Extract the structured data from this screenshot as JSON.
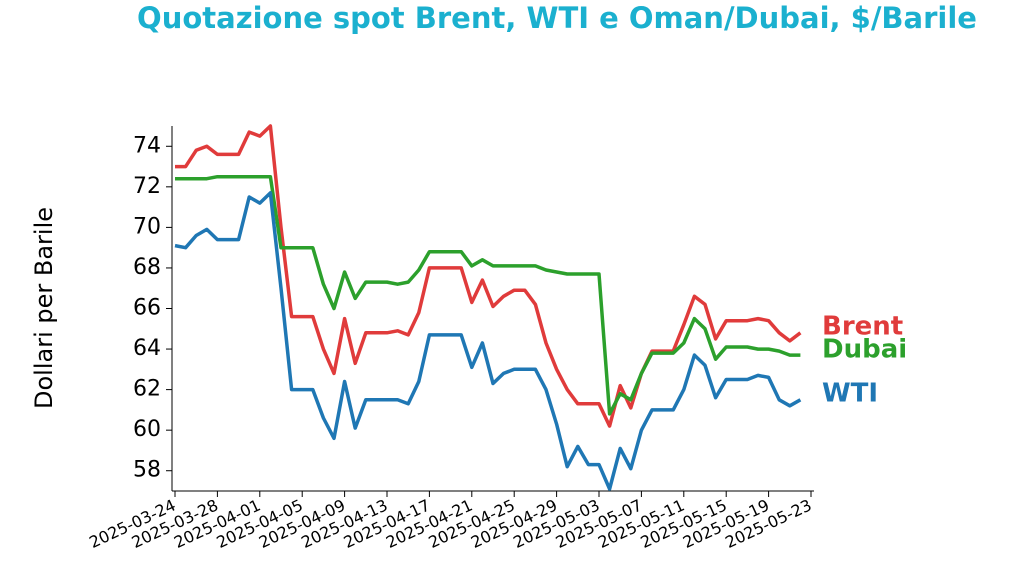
{
  "chart_data": {
    "type": "line",
    "title": "Quotazione spot Brent, WTI e Oman/Dubai, $/Barile",
    "y_label": "Dollari per Barile",
    "x": [
      "2025-03-24",
      "2025-03-25",
      "2025-03-26",
      "2025-03-27",
      "2025-03-28",
      "2025-03-29",
      "2025-03-30",
      "2025-03-31",
      "2025-04-01",
      "2025-04-02",
      "2025-04-03",
      "2025-04-04",
      "2025-04-05",
      "2025-04-06",
      "2025-04-07",
      "2025-04-08",
      "2025-04-09",
      "2025-04-10",
      "2025-04-11",
      "2025-04-12",
      "2025-04-13",
      "2025-04-14",
      "2025-04-15",
      "2025-04-16",
      "2025-04-17",
      "2025-04-18",
      "2025-04-19",
      "2025-04-20",
      "2025-04-21",
      "2025-04-22",
      "2025-04-23",
      "2025-04-24",
      "2025-04-25",
      "2025-04-26",
      "2025-04-27",
      "2025-04-28",
      "2025-04-29",
      "2025-04-30",
      "2025-05-01",
      "2025-05-02",
      "2025-05-03",
      "2025-05-04",
      "2025-05-05",
      "2025-05-06",
      "2025-05-07",
      "2025-05-08",
      "2025-05-09",
      "2025-05-10",
      "2025-05-11",
      "2025-05-12",
      "2025-05-13",
      "2025-05-14",
      "2025-05-15",
      "2025-05-16",
      "2025-05-17",
      "2025-05-18",
      "2025-05-19",
      "2025-05-20",
      "2025-05-21",
      "2025-05-22"
    ],
    "series": [
      {
        "name": "Brent",
        "color": "#e03b3b",
        "values": [
          73.0,
          73.0,
          73.8,
          74.0,
          73.6,
          73.6,
          73.6,
          74.7,
          74.5,
          75.0,
          70.0,
          65.6,
          65.6,
          65.6,
          64.0,
          62.8,
          65.5,
          63.3,
          64.8,
          64.8,
          64.8,
          64.9,
          64.7,
          65.8,
          68.0,
          68.0,
          68.0,
          68.0,
          66.3,
          67.4,
          66.1,
          66.6,
          66.9,
          66.9,
          66.2,
          64.3,
          63.0,
          62.0,
          61.3,
          61.3,
          61.3,
          60.2,
          62.2,
          61.1,
          62.8,
          63.9,
          63.9,
          63.9,
          65.2,
          66.6,
          66.2,
          64.5,
          65.4,
          65.4,
          65.4,
          65.5,
          65.4,
          64.8,
          64.4,
          64.8
        ]
      },
      {
        "name": "Dubai",
        "color": "#2ca02c",
        "values": [
          72.4,
          72.4,
          72.4,
          72.4,
          72.5,
          72.5,
          72.5,
          72.5,
          72.5,
          72.5,
          69.0,
          69.0,
          69.0,
          69.0,
          67.2,
          66.0,
          67.8,
          66.5,
          67.3,
          67.3,
          67.3,
          67.2,
          67.3,
          67.9,
          68.8,
          68.8,
          68.8,
          68.8,
          68.1,
          68.4,
          68.1,
          68.1,
          68.1,
          68.1,
          68.1,
          67.9,
          67.8,
          67.7,
          67.7,
          67.7,
          67.7,
          60.8,
          61.8,
          61.5,
          62.8,
          63.8,
          63.8,
          63.8,
          64.3,
          65.5,
          65.0,
          63.5,
          64.1,
          64.1,
          64.1,
          64.0,
          64.0,
          63.9,
          63.7,
          63.7
        ]
      },
      {
        "name": "WTI",
        "color": "#1f77b4",
        "values": [
          69.1,
          69.0,
          69.6,
          69.9,
          69.4,
          69.4,
          69.4,
          71.5,
          71.2,
          71.7,
          67.0,
          62.0,
          62.0,
          62.0,
          60.6,
          59.6,
          62.4,
          60.1,
          61.5,
          61.5,
          61.5,
          61.5,
          61.3,
          62.4,
          64.7,
          64.7,
          64.7,
          64.7,
          63.1,
          64.3,
          62.3,
          62.8,
          63.0,
          63.0,
          63.0,
          62.0,
          60.3,
          58.2,
          59.2,
          58.3,
          58.3,
          57.1,
          59.1,
          58.1,
          60.0,
          61.0,
          61.0,
          61.0,
          62.0,
          63.7,
          63.2,
          61.6,
          62.5,
          62.5,
          62.5,
          62.7,
          62.6,
          61.5,
          61.2,
          61.5
        ]
      }
    ],
    "xlim": [
      "2025-03-24",
      "2025-05-23"
    ],
    "xticks": [
      "2025-03-24",
      "2025-03-28",
      "2025-04-01",
      "2025-04-05",
      "2025-04-09",
      "2025-04-13",
      "2025-04-17",
      "2025-04-21",
      "2025-04-25",
      "2025-04-29",
      "2025-05-03",
      "2025-05-07",
      "2025-05-11",
      "2025-05-15",
      "2025-05-19",
      "2025-05-23"
    ],
    "ylim": [
      57,
      75
    ],
    "yticks": [
      58,
      60,
      62,
      64,
      66,
      68,
      70,
      72,
      74
    ],
    "title_color": "#1bb0cf",
    "grid": false
  }
}
